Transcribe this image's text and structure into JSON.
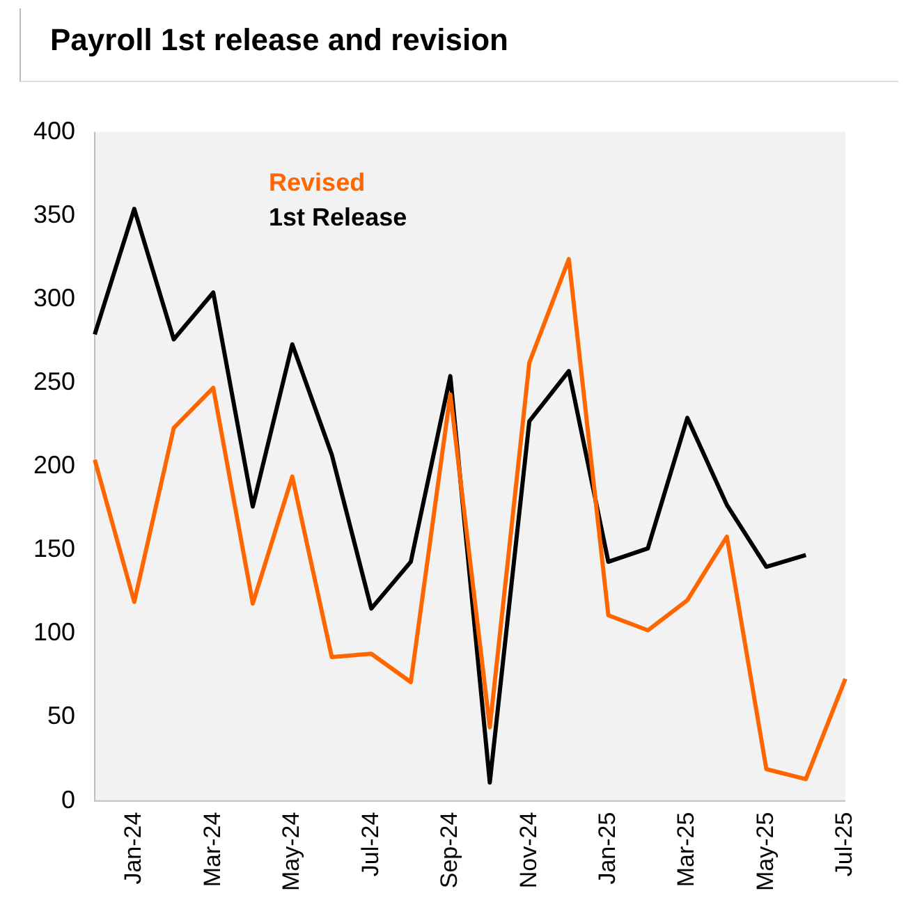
{
  "chart_data": {
    "type": "line",
    "title": "Payroll 1st release and revision",
    "categories": [
      null,
      "Jan-24",
      null,
      "Mar-24",
      null,
      "May-24",
      null,
      "Jul-24",
      null,
      "Sep-24",
      null,
      "Nov-24",
      null,
      "Jan-25",
      null,
      "Mar-25",
      null,
      "May-25",
      null,
      "Jul-25"
    ],
    "series": [
      {
        "name": "Revised",
        "color": "#ff6600",
        "values": [
          204,
          119,
          223,
          247,
          118,
          194,
          86,
          88,
          71,
          243,
          44,
          262,
          324,
          111,
          102,
          120,
          158,
          19,
          13,
          73
        ]
      },
      {
        "name": "1st Release",
        "color": "#000000",
        "values": [
          279,
          354,
          276,
          304,
          176,
          273,
          207,
          115,
          143,
          254,
          11,
          227,
          257,
          143,
          151,
          229,
          177,
          140,
          147,
          null
        ]
      }
    ],
    "ylim": [
      0,
      400
    ],
    "yticks": [
      0,
      50,
      100,
      150,
      200,
      250,
      300,
      350,
      400
    ],
    "grid": false,
    "legend": "top left",
    "marker": "none",
    "line_style": "solid"
  }
}
